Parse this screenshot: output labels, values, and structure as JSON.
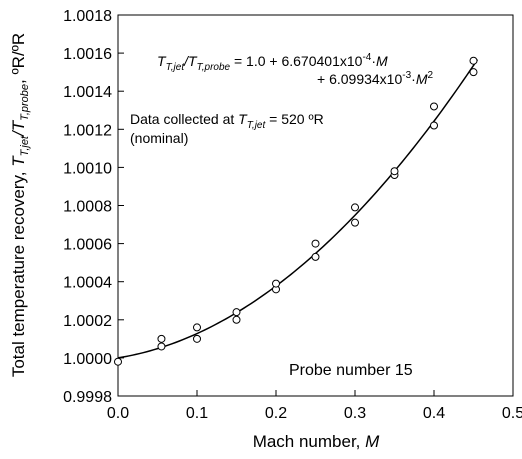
{
  "chart_data": {
    "type": "scatter",
    "xlabel_text": "Mach number, ",
    "xlabel_var": "M",
    "ylabel_text": "Total temperature recovery, ",
    "ylabel_ratio": "T_T,jet/T_T,probe",
    "ylabel_unit": ", ºR/ºR",
    "xlim": [
      0.0,
      0.5
    ],
    "ylim": [
      0.9998,
      1.0018
    ],
    "x_ticks": [
      "0.0",
      "0.1",
      "0.2",
      "0.3",
      "0.4",
      "0.5"
    ],
    "y_ticks": [
      "0.9998",
      "1.0000",
      "1.0002",
      "1.0004",
      "1.0006",
      "1.0008",
      "1.0010",
      "1.0012",
      "1.0014",
      "1.0016",
      "1.0018"
    ],
    "grid": false,
    "points": [
      {
        "x": 0.0,
        "y": 0.99998
      },
      {
        "x": 0.055,
        "y": 1.00006
      },
      {
        "x": 0.055,
        "y": 1.0001
      },
      {
        "x": 0.1,
        "y": 1.0001
      },
      {
        "x": 0.1,
        "y": 1.00016
      },
      {
        "x": 0.15,
        "y": 1.0002
      },
      {
        "x": 0.15,
        "y": 1.00024
      },
      {
        "x": 0.2,
        "y": 1.00036
      },
      {
        "x": 0.2,
        "y": 1.00039
      },
      {
        "x": 0.25,
        "y": 1.00053
      },
      {
        "x": 0.25,
        "y": 1.0006
      },
      {
        "x": 0.3,
        "y": 1.00071
      },
      {
        "x": 0.3,
        "y": 1.00079
      },
      {
        "x": 0.35,
        "y": 1.00096
      },
      {
        "x": 0.35,
        "y": 1.00098
      },
      {
        "x": 0.4,
        "y": 1.00122
      },
      {
        "x": 0.4,
        "y": 1.00132
      },
      {
        "x": 0.45,
        "y": 1.0015
      },
      {
        "x": 0.45,
        "y": 1.00156
      }
    ],
    "fit": {
      "intercept": 1.0,
      "linear": 0.0006670401,
      "quadratic": 0.00609934
    },
    "equation_line1": "T_T,jet/T_T,probe = 1.0 + 6.670401x10^-4·M",
    "equation_line2": "+ 6.09934x10^-3·M^2",
    "note_line1": "Data collected at T_T,jet = 520 ºR",
    "note_line2": "(nominal)",
    "probe_label": "Probe number 15"
  }
}
